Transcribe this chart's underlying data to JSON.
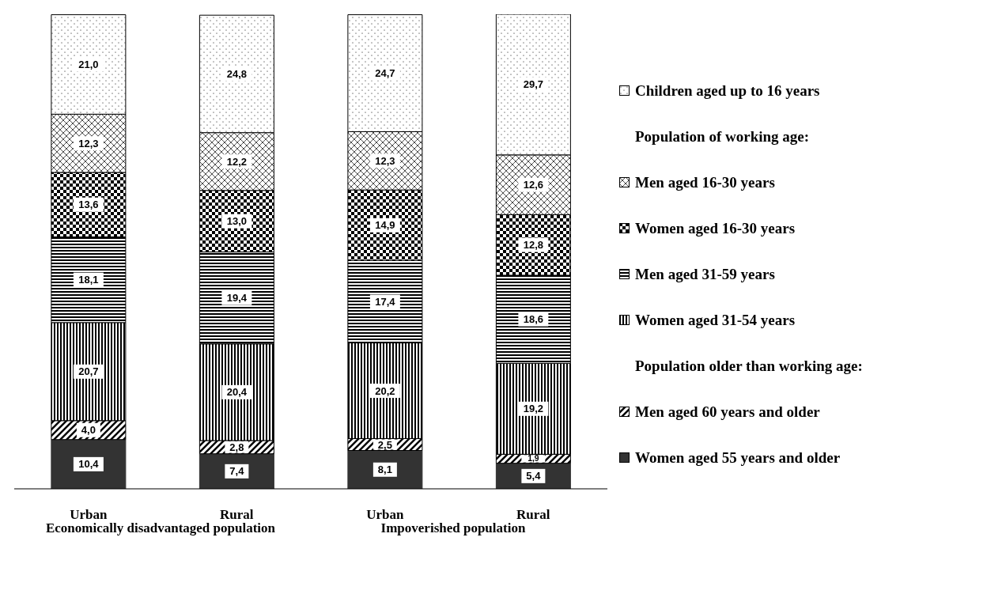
{
  "chart_data": {
    "type": "bar",
    "stacked": true,
    "legend": "right",
    "categories": [
      "Urban",
      "Rural",
      "Urban",
      "Rural"
    ],
    "series": [
      {
        "name": "Women aged 55 years and older",
        "color": "#333333",
        "values": [
          10.4,
          7.4,
          8.1,
          5.4
        ],
        "value_labels": [
          "10,4",
          "7,4",
          "8,1",
          "5,4"
        ]
      },
      {
        "name": "Men aged 60 years and older",
        "color": "#000000",
        "values": [
          4.0,
          2.8,
          2.5,
          1.9
        ],
        "value_labels": [
          "4,0",
          "2,8",
          "2,5",
          "1,9"
        ]
      },
      {
        "name": "Women aged 31-54 years",
        "color": "#000000",
        "values": [
          20.7,
          20.4,
          20.2,
          19.2
        ],
        "value_labels": [
          "20,7",
          "20,4",
          "20,2",
          "19,2"
        ]
      },
      {
        "name": "Men aged 31-59 years",
        "color": "#000000",
        "values": [
          18.1,
          19.4,
          17.4,
          18.6
        ],
        "value_labels": [
          "18,1",
          "19,4",
          "17,4",
          "18,6"
        ]
      },
      {
        "name": "Women aged 16-30 years",
        "color": "#000000",
        "values": [
          13.6,
          13.0,
          14.9,
          12.8
        ],
        "value_labels": [
          "13,6",
          "13,0",
          "14,9",
          "12,8"
        ]
      },
      {
        "name": "Men aged 16-30 years",
        "color": "#000000",
        "values": [
          12.3,
          12.2,
          12.3,
          12.6
        ],
        "value_labels": [
          "12,3",
          "12,2",
          "12,3",
          "12,6"
        ]
      },
      {
        "name": "Children aged up to 16 years",
        "color": "#000000",
        "values": [
          21.0,
          24.8,
          24.7,
          29.7
        ],
        "value_labels": [
          "21,0",
          "24,8",
          "24,7",
          "29,7"
        ]
      }
    ],
    "annotations": [
      "Population of working age:",
      "Population older than working age:",
      "Economically disadvantaged population",
      "Impoverished population"
    ]
  }
}
